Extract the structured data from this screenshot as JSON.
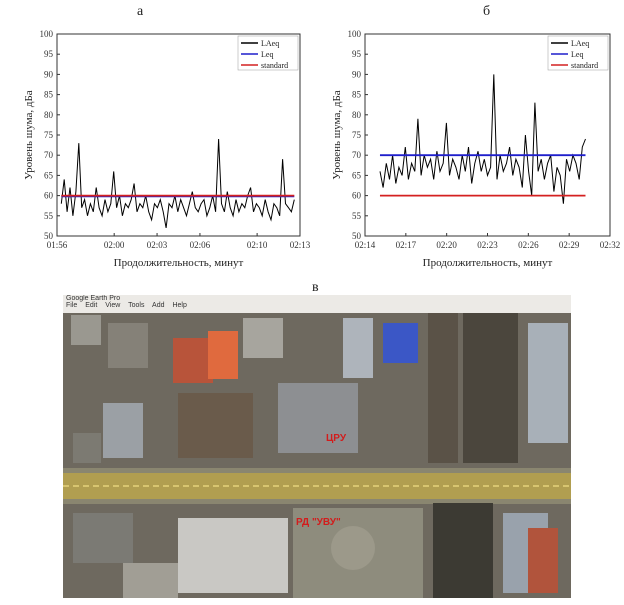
{
  "panel_labels": {
    "a": "а",
    "b": "б",
    "c": "в"
  },
  "chart_data": [
    {
      "type": "line",
      "ylabel": "Уровень шума, дБа",
      "xlabel": "Продолжительность, минут",
      "ylim": [
        50,
        100
      ],
      "yticks": [
        50,
        55,
        60,
        65,
        70,
        75,
        80,
        85,
        90,
        95,
        100
      ],
      "xlim_minutes": [
        116,
        133
      ],
      "xticks": [
        "01:56",
        "02:00",
        "02:03",
        "02:06",
        "02:10",
        "02:13"
      ],
      "xtick_minutes": [
        116,
        120,
        123,
        126,
        130,
        133
      ],
      "legend": {
        "position": "top-right",
        "entries": [
          "LAeq",
          "Leq",
          "standard"
        ]
      },
      "series": [
        {
          "name": "LAeq",
          "color": "#000000",
          "x_start": 116.3,
          "x_end": 132.6,
          "values": [
            58,
            64,
            56,
            62,
            55,
            61,
            73,
            57,
            59,
            55,
            58,
            56,
            62,
            57,
            55,
            59,
            56,
            58,
            66,
            57,
            60,
            55,
            58,
            57,
            59,
            63,
            56,
            58,
            57,
            60,
            56,
            54,
            58,
            57,
            59,
            56,
            52,
            58,
            57,
            60,
            56,
            59,
            57,
            55,
            58,
            61,
            57,
            56,
            58,
            59,
            55,
            57,
            60,
            56,
            74,
            58,
            56,
            61,
            57,
            55,
            59,
            56,
            58,
            57,
            60,
            62,
            56,
            58,
            57,
            55,
            59,
            56,
            54,
            58,
            57,
            55,
            69,
            58,
            57,
            56,
            59
          ]
        },
        {
          "name": "Leq",
          "color": "#1f1fcc",
          "values": [
            59.8
          ]
        },
        {
          "name": "standard",
          "color": "#d42020",
          "values": [
            60
          ]
        }
      ]
    },
    {
      "type": "line",
      "ylabel": "Уровень шума, дБа",
      "xlabel": "Продолжительность, минут",
      "ylim": [
        50,
        100
      ],
      "yticks": [
        50,
        55,
        60,
        65,
        70,
        75,
        80,
        85,
        90,
        95,
        100
      ],
      "xlim_minutes": [
        134,
        152
      ],
      "xticks": [
        "02:14",
        "02:17",
        "02:20",
        "02:23",
        "02:26",
        "02:29",
        "02:32"
      ],
      "xtick_minutes": [
        134,
        137,
        140,
        143,
        146,
        149,
        152
      ],
      "legend": {
        "position": "top-right",
        "entries": [
          "LAeq",
          "Leq",
          "standard"
        ]
      },
      "series": [
        {
          "name": "LAeq",
          "color": "#000000",
          "x_start": 135.1,
          "x_end": 150.2,
          "values": [
            66,
            62,
            68,
            64,
            70,
            63,
            67,
            65,
            72,
            64,
            68,
            66,
            79,
            65,
            70,
            67,
            69,
            64,
            71,
            66,
            68,
            78,
            65,
            69,
            67,
            64,
            70,
            66,
            72,
            63,
            68,
            71,
            66,
            69,
            65,
            67,
            90,
            64,
            70,
            66,
            68,
            72,
            65,
            69,
            67,
            62,
            75,
            66,
            60,
            83,
            66,
            69,
            64,
            68,
            70,
            61,
            67,
            65,
            58,
            69,
            66,
            70,
            68,
            64,
            72,
            74
          ]
        },
        {
          "name": "Leq",
          "color": "#1f1fcc",
          "values": [
            70
          ]
        },
        {
          "name": "standard",
          "color": "#d42020",
          "values": [
            60
          ]
        }
      ]
    }
  ],
  "map": {
    "menu_items": [
      "File",
      "Edit",
      "View",
      "Tools",
      "Add",
      "Help"
    ],
    "app_title": "Google Earth Pro",
    "labels": {
      "station_1": "ЦРУ",
      "station_2": "РД \"УВУ\""
    }
  }
}
